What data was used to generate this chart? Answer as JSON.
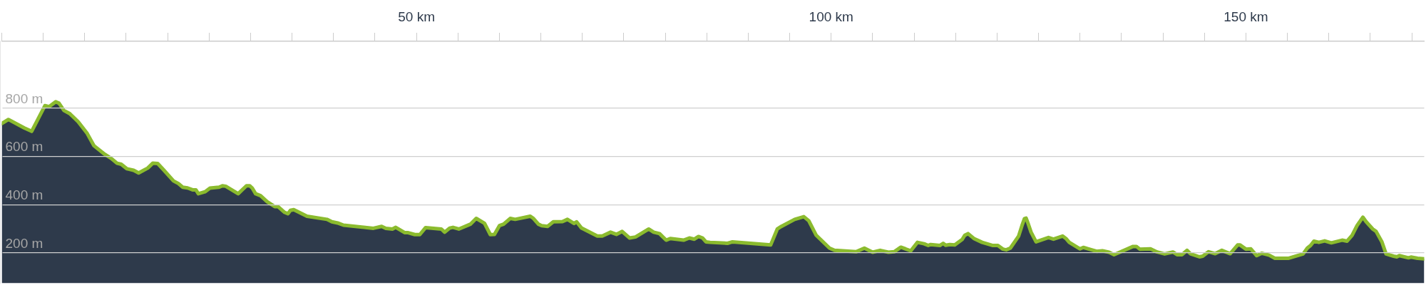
{
  "chart_data": {
    "type": "area",
    "x": [
      0,
      0.8,
      2.7,
      3.6,
      5.2,
      5.7,
      6.5,
      6.9,
      7.5,
      8.2,
      9.2,
      10.3,
      11.1,
      12.3,
      13.2,
      13.9,
      14.4,
      15.1,
      15.9,
      16.5,
      17.6,
      18.2,
      18.8,
      19.5,
      20.7,
      21.3,
      21.8,
      22.4,
      23.0,
      23.4,
      23.7,
      24.5,
      25.1,
      26.2,
      26.6,
      27.0,
      28.5,
      29.5,
      29.9,
      30.2,
      30.6,
      31.2,
      32.0,
      32.9,
      33.3,
      34.1,
      34.5,
      34.8,
      35.2,
      36.8,
      39.2,
      39.8,
      40.6,
      41.2,
      44.8,
      45.8,
      46.3,
      47.1,
      47.5,
      48.6,
      49.0,
      49.8,
      50.4,
      51.1,
      53.0,
      53.4,
      54.0,
      54.4,
      55.1,
      56.5,
      57.2,
      58.2,
      58.9,
      59.4,
      60.0,
      60.5,
      61.3,
      61.9,
      63.7,
      64.1,
      64.7,
      65.1,
      65.8,
      66.5,
      67.6,
      68.2,
      69.0,
      69.3,
      69.9,
      71.8,
      72.4,
      73.4,
      74.1,
      74.8,
      75.7,
      76.4,
      78.0,
      78.6,
      79.3,
      80.1,
      80.6,
      82.2,
      82.9,
      83.5,
      84.0,
      84.5,
      84.9,
      85.4,
      87.5,
      88.1,
      92.7,
      93.5,
      94.0,
      95.6,
      96.7,
      97.3,
      98.2,
      99.8,
      100.4,
      103.0,
      104.0,
      105.0,
      105.9,
      106.9,
      107.6,
      108.4,
      109.6,
      110.4,
      111.2,
      111.7,
      112.0,
      113.1,
      113.5,
      113.8,
      114.3,
      114.9,
      115.8,
      116.1,
      116.5,
      117.2,
      118.2,
      119.5,
      120.1,
      120.7,
      121.1,
      121.6,
      122.6,
      123.0,
      123.3,
      123.5,
      123.7,
      124.1,
      124.7,
      126.2,
      126.8,
      127.9,
      128.3,
      128.7,
      130.0,
      130.4,
      132.0,
      132.7,
      133.5,
      134.1,
      136.4,
      136.8,
      137.2,
      138.5,
      139.3,
      140.2,
      141.2,
      141.7,
      142.3,
      142.9,
      143.3,
      144.4,
      144.8,
      145.5,
      146.3,
      147.1,
      148.1,
      149.0,
      149.3,
      150.0,
      150.6,
      151.3,
      151.9,
      152.8,
      153.5,
      155.1,
      156.9,
      157.4,
      157.8,
      158.2,
      158.8,
      159.5,
      160.3,
      161.6,
      162.2,
      162.8,
      163.4,
      164.1,
      164.5,
      165.3,
      165.7,
      166.4,
      166.9,
      167.8,
      168.2,
      168.5,
      169.6,
      169.9,
      170.7,
      171.5
    ],
    "series": [
      {
        "color": "#8bbb2e",
        "values": [
          735,
          752,
          717,
          703,
          809,
          805,
          825,
          819,
          789,
          776,
          743,
          694,
          644,
          611,
          591,
          571,
          567,
          548,
          542,
          531,
          551,
          571,
          570,
          544,
          498,
          487,
          472,
          469,
          461,
          461,
          445,
          453,
          468,
          472,
          478,
          476,
          445,
          478,
          478,
          468,
          445,
          437,
          412,
          392,
          392,
          368,
          362,
          376,
          379,
          352,
          339,
          329,
          323,
          315,
          302,
          310,
          302,
          299,
          306,
          284,
          284,
          276,
          276,
          305,
          299,
          286,
          303,
          306,
          299,
          319,
          343,
          323,
          276,
          277,
          313,
          319,
          343,
          339,
          352,
          343,
          319,
          313,
          310,
          329,
          330,
          339,
          322,
          329,
          303,
          270,
          270,
          286,
          277,
          289,
          262,
          266,
          299,
          286,
          280,
          253,
          260,
          253,
          262,
          257,
          268,
          262,
          246,
          244,
          240,
          246,
          233,
          299,
          310,
          339,
          350,
          333,
          273,
          220,
          211,
          205,
          220,
          203,
          211,
          203,
          205,
          224,
          209,
          244,
          238,
          231,
          235,
          231,
          240,
          232,
          235,
          233,
          256,
          273,
          280,
          260,
          244,
          231,
          231,
          216,
          213,
          220,
          270,
          313,
          342,
          344,
          326,
          286,
          246,
          264,
          257,
          270,
          260,
          244,
          217,
          223,
          207,
          209,
          203,
          193,
          227,
          227,
          216,
          217,
          204,
          196,
          204,
          193,
          193,
          211,
          197,
          184,
          187,
          205,
          197,
          211,
          197,
          233,
          233,
          216,
          217,
          189,
          199,
          191,
          178,
          178,
          196,
          220,
          231,
          249,
          244,
          250,
          242,
          253,
          249,
          273,
          313,
          348,
          329,
          299,
          289,
          246,
          196,
          187,
          184,
          189,
          180,
          183,
          178,
          176
        ]
      }
    ],
    "xlim": [
      0,
      171.5
    ],
    "xticks": [
      {
        "value": 0,
        "label": null
      },
      {
        "value": 5,
        "label": null
      },
      {
        "value": 10,
        "label": null
      },
      {
        "value": 15,
        "label": null
      },
      {
        "value": 20,
        "label": null
      },
      {
        "value": 25,
        "label": null
      },
      {
        "value": 30,
        "label": null
      },
      {
        "value": 35,
        "label": null
      },
      {
        "value": 40,
        "label": null
      },
      {
        "value": 45,
        "label": null
      },
      {
        "value": 50,
        "label": "50 km"
      },
      {
        "value": 55,
        "label": null
      },
      {
        "value": 60,
        "label": null
      },
      {
        "value": 65,
        "label": null
      },
      {
        "value": 70,
        "label": null
      },
      {
        "value": 75,
        "label": null
      },
      {
        "value": 80,
        "label": null
      },
      {
        "value": 85,
        "label": null
      },
      {
        "value": 90,
        "label": null
      },
      {
        "value": 95,
        "label": null
      },
      {
        "value": 100,
        "label": "100 km"
      },
      {
        "value": 105,
        "label": null
      },
      {
        "value": 110,
        "label": null
      },
      {
        "value": 115,
        "label": null
      },
      {
        "value": 120,
        "label": null
      },
      {
        "value": 125,
        "label": null
      },
      {
        "value": 130,
        "label": null
      },
      {
        "value": 135,
        "label": null
      },
      {
        "value": 140,
        "label": null
      },
      {
        "value": 145,
        "label": null
      },
      {
        "value": 150,
        "label": "150 km"
      },
      {
        "value": 155,
        "label": null
      },
      {
        "value": 160,
        "label": null
      },
      {
        "value": 165,
        "label": null
      },
      {
        "value": 170,
        "label": null
      }
    ],
    "ylim": [
      75,
      1075
    ],
    "yticks": [
      {
        "value": 200,
        "label": "200 m"
      },
      {
        "value": 400,
        "label": "400 m"
      },
      {
        "value": 600,
        "label": "600 m"
      },
      {
        "value": 800,
        "label": "800 m"
      }
    ],
    "grid": "y",
    "legend": false,
    "marker": "none",
    "line_style": "solid"
  }
}
